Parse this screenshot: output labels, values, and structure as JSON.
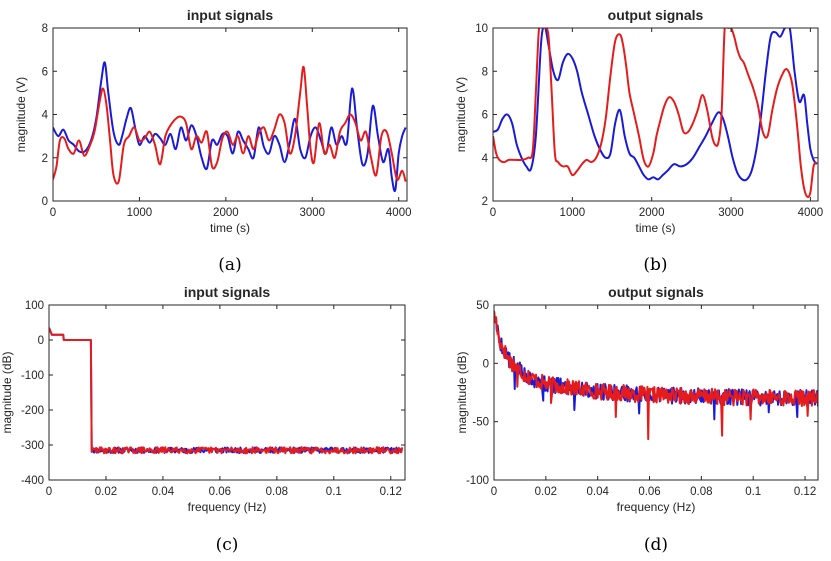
{
  "colors": {
    "series1": "#1a1adb",
    "series2": "#e61c1c"
  },
  "chart_data": [
    {
      "id": "a",
      "type": "line",
      "title": "input signals",
      "xlabel": "time (s)",
      "ylabel": "magnitude (V)",
      "caption": "(a)",
      "xlim": [
        0,
        4096
      ],
      "ylim": [
        0,
        8
      ],
      "xticks": [
        0,
        1000,
        2000,
        3000,
        4000
      ],
      "yticks": [
        0,
        2,
        4,
        6,
        8
      ],
      "grid": false,
      "series": [
        {
          "name": "blue",
          "color": "#1a1adb",
          "x": [
            0,
            60,
            120,
            180,
            240,
            300,
            370,
            440,
            500,
            560,
            600,
            640,
            700,
            760,
            800,
            850,
            900,
            950,
            1000,
            1060,
            1120,
            1180,
            1240,
            1300,
            1360,
            1420,
            1480,
            1540,
            1600,
            1660,
            1720,
            1780,
            1840,
            1900,
            1960,
            2020,
            2080,
            2140,
            2200,
            2260,
            2320,
            2380,
            2440,
            2500,
            2560,
            2620,
            2680,
            2740,
            2800,
            2860,
            2920,
            2980,
            3040,
            3100,
            3160,
            3220,
            3280,
            3340,
            3400,
            3460,
            3520,
            3580,
            3640,
            3700,
            3760,
            3820,
            3880,
            3920,
            3960,
            4000,
            4040,
            4080
          ],
          "y": [
            3.4,
            3.0,
            3.3,
            2.8,
            2.6,
            2.3,
            2.3,
            2.8,
            3.8,
            5.6,
            6.4,
            5.0,
            3.2,
            2.6,
            3.0,
            3.8,
            4.3,
            3.4,
            2.6,
            3.0,
            2.7,
            3.1,
            2.9,
            2.6,
            3.1,
            2.4,
            3.4,
            2.8,
            3.5,
            3.0,
            2.0,
            1.5,
            2.8,
            2.6,
            3.1,
            3.0,
            2.2,
            3.2,
            2.8,
            2.4,
            2.0,
            3.4,
            2.5,
            2.2,
            3.0,
            2.6,
            1.8,
            2.7,
            3.8,
            2.4,
            2.0,
            3.0,
            3.4,
            2.8,
            2.2,
            3.4,
            2.6,
            3.0,
            2.7,
            5.2,
            3.3,
            1.7,
            2.2,
            4.4,
            3.0,
            1.8,
            2.4,
            1.1,
            0.5,
            2.2,
            3.0,
            3.4
          ]
        },
        {
          "name": "red",
          "color": "#e61c1c",
          "x": [
            0,
            40,
            80,
            130,
            180,
            240,
            300,
            360,
            420,
            480,
            540,
            580,
            620,
            660,
            700,
            760,
            820,
            880,
            940,
            1000,
            1060,
            1120,
            1180,
            1240,
            1300,
            1360,
            1420,
            1480,
            1540,
            1600,
            1660,
            1720,
            1780,
            1840,
            1900,
            1960,
            2020,
            2080,
            2140,
            2200,
            2260,
            2320,
            2380,
            2440,
            2500,
            2560,
            2620,
            2680,
            2740,
            2800,
            2860,
            2900,
            2940,
            2980,
            3020,
            3080,
            3140,
            3200,
            3260,
            3320,
            3380,
            3440,
            3500,
            3560,
            3620,
            3680,
            3740,
            3800,
            3860,
            3920,
            3980,
            4040,
            4080
          ],
          "y": [
            1.0,
            1.6,
            2.8,
            2.9,
            2.4,
            2.2,
            2.8,
            2.1,
            2.5,
            3.2,
            4.6,
            5.2,
            4.4,
            2.8,
            1.2,
            0.9,
            2.6,
            3.0,
            3.4,
            2.8,
            2.9,
            3.2,
            2.6,
            1.7,
            3.0,
            3.5,
            3.8,
            3.9,
            3.6,
            2.4,
            3.0,
            2.7,
            3.2,
            1.6,
            1.8,
            2.9,
            3.2,
            2.6,
            3.0,
            2.2,
            3.0,
            2.4,
            3.1,
            3.4,
            2.8,
            3.3,
            4.0,
            3.6,
            2.2,
            3.0,
            5.0,
            6.2,
            4.4,
            2.4,
            1.8,
            3.6,
            2.2,
            2.6,
            2.0,
            3.2,
            3.6,
            4.0,
            3.6,
            2.8,
            3.2,
            2.0,
            1.2,
            3.0,
            3.2,
            2.2,
            1.0,
            1.4,
            0.9
          ]
        }
      ]
    },
    {
      "id": "b",
      "type": "line",
      "title": "output signals",
      "xlabel": "time (s)",
      "ylabel": "magnitude (V)",
      "caption": "(b)",
      "xlim": [
        0,
        4096
      ],
      "ylim": [
        2,
        10
      ],
      "xticks": [
        0,
        1000,
        2000,
        3000,
        4000
      ],
      "yticks": [
        2,
        4,
        6,
        8,
        10
      ],
      "grid": false,
      "series": [
        {
          "name": "blue",
          "color": "#1a1adb",
          "x": [
            0,
            60,
            120,
            180,
            240,
            300,
            360,
            420,
            480,
            540,
            600,
            630,
            660,
            700,
            760,
            820,
            880,
            940,
            1000,
            1060,
            1120,
            1200,
            1280,
            1360,
            1420,
            1480,
            1540,
            1600,
            1660,
            1720,
            1780,
            1840,
            1900,
            1960,
            2020,
            2080,
            2140,
            2200,
            2280,
            2360,
            2440,
            2520,
            2600,
            2680,
            2760,
            2840,
            2900,
            2960,
            3020,
            3080,
            3140,
            3200,
            3260,
            3320,
            3380,
            3440,
            3500,
            3560,
            3620,
            3680,
            3740,
            3800,
            3860,
            3920,
            3960,
            4000,
            4040,
            4080
          ],
          "y": [
            5.2,
            5.3,
            5.8,
            6.0,
            5.6,
            4.6,
            4.0,
            3.6,
            3.5,
            5.0,
            9.0,
            10.0,
            10.0,
            9.2,
            8.0,
            7.6,
            8.4,
            8.8,
            8.6,
            8.0,
            7.0,
            6.0,
            5.0,
            4.3,
            4.0,
            4.2,
            5.6,
            6.2,
            5.0,
            4.2,
            4.0,
            3.6,
            3.2,
            3.0,
            3.1,
            3.0,
            3.2,
            3.4,
            3.7,
            3.6,
            3.7,
            4.0,
            4.5,
            5.0,
            5.6,
            6.1,
            5.8,
            5.0,
            4.0,
            3.3,
            3.0,
            3.0,
            3.4,
            4.4,
            6.0,
            8.0,
            9.6,
            9.8,
            9.6,
            10.0,
            10.0,
            8.0,
            6.6,
            6.9,
            5.6,
            4.4,
            3.9,
            3.7
          ]
        },
        {
          "name": "red",
          "color": "#e61c1c",
          "x": [
            0,
            40,
            80,
            140,
            200,
            280,
            360,
            440,
            500,
            540,
            580,
            620,
            660,
            700,
            740,
            780,
            820,
            880,
            940,
            1000,
            1060,
            1120,
            1180,
            1240,
            1300,
            1360,
            1420,
            1480,
            1540,
            1600,
            1640,
            1680,
            1720,
            1780,
            1840,
            1900,
            1960,
            2020,
            2060,
            2100,
            2160,
            2220,
            2280,
            2340,
            2400,
            2460,
            2520,
            2580,
            2640,
            2700,
            2760,
            2800,
            2840,
            2880,
            2920,
            2960,
            3000,
            3040,
            3080,
            3120,
            3160,
            3220,
            3280,
            3340,
            3400,
            3460,
            3520,
            3580,
            3640,
            3700,
            3760,
            3800,
            3840,
            3880,
            3920,
            3960,
            4000,
            4040,
            4080
          ],
          "y": [
            5.0,
            4.2,
            3.9,
            3.8,
            3.9,
            3.9,
            3.9,
            4.0,
            4.3,
            7.0,
            10.0,
            10.0,
            10.0,
            9.6,
            7.0,
            4.2,
            3.8,
            3.6,
            3.6,
            3.2,
            3.4,
            3.7,
            3.9,
            3.8,
            4.0,
            4.6,
            5.8,
            7.8,
            9.4,
            9.7,
            9.2,
            8.2,
            7.0,
            6.0,
            5.0,
            3.9,
            3.6,
            4.2,
            5.0,
            5.6,
            6.4,
            6.8,
            6.6,
            6.0,
            5.2,
            5.2,
            5.6,
            6.2,
            6.9,
            6.2,
            5.0,
            4.6,
            4.7,
            6.0,
            10.0,
            10.0,
            10.0,
            9.6,
            9.0,
            8.6,
            8.4,
            7.8,
            7.2,
            6.4,
            5.2,
            5.0,
            6.2,
            7.2,
            7.8,
            8.1,
            7.6,
            6.6,
            5.2,
            3.6,
            2.6,
            2.2,
            2.4,
            3.6,
            3.8
          ]
        }
      ]
    },
    {
      "id": "c",
      "type": "line",
      "title": "input signals",
      "xlabel": "frequency (Hz)",
      "ylabel": "magnitude (dB)",
      "caption": "(c)",
      "xlim": [
        0,
        0.125
      ],
      "ylim": [
        -400,
        100
      ],
      "xticks": [
        0,
        0.02,
        0.04,
        0.06,
        0.08,
        0.1,
        0.12
      ],
      "yticks": [
        -400,
        -300,
        -200,
        -100,
        0,
        100
      ],
      "grid": false,
      "series": [
        {
          "name": "blue",
          "color": "#1a1adb",
          "kind": "noisy",
          "shape": [
            [
              0,
              35
            ],
            [
              0.001,
              15
            ],
            [
              0.005,
              15
            ],
            [
              0.0052,
              0
            ],
            [
              0.0147,
              0
            ],
            [
              0.015,
              -315
            ],
            [
              0.124,
              -315
            ]
          ],
          "noise_start": 0.015,
          "noise_amp": 8,
          "points": 380,
          "seed": 11
        },
        {
          "name": "red",
          "color": "#e61c1c",
          "kind": "noisy",
          "shape": [
            [
              0,
              35
            ],
            [
              0.001,
              15
            ],
            [
              0.005,
              15
            ],
            [
              0.0052,
              0
            ],
            [
              0.0147,
              0
            ],
            [
              0.015,
              -315
            ],
            [
              0.124,
              -315
            ]
          ],
          "noise_start": 0.015,
          "noise_amp": 9,
          "points": 380,
          "seed": 29
        }
      ]
    },
    {
      "id": "d",
      "type": "line",
      "title": "output signals",
      "xlabel": "frequency (Hz)",
      "ylabel": "magnitude (dB)",
      "caption": "(d)",
      "xlim": [
        0,
        0.125
      ],
      "ylim": [
        -100,
        50
      ],
      "xticks": [
        0,
        0.02,
        0.04,
        0.06,
        0.08,
        0.1,
        0.12
      ],
      "yticks": [
        -100,
        -50,
        0,
        50
      ],
      "grid": false,
      "series": [
        {
          "name": "blue",
          "color": "#1a1adb",
          "kind": "noisy",
          "shape": [
            [
              0,
              45
            ],
            [
              0.002,
              20
            ],
            [
              0.006,
              2
            ],
            [
              0.012,
              -10
            ],
            [
              0.02,
              -18
            ],
            [
              0.04,
              -24
            ],
            [
              0.06,
              -27
            ],
            [
              0.09,
              -29
            ],
            [
              0.125,
              -30
            ]
          ],
          "noise_start": 0.0005,
          "noise_amp": 7,
          "points": 420,
          "seed": 5,
          "dips": [
            [
              0.008,
              -22
            ],
            [
              0.019,
              -32
            ],
            [
              0.031,
              -40
            ],
            [
              0.056,
              -43
            ],
            [
              0.085,
              -48
            ],
            [
              0.106,
              -42
            ],
            [
              0.117,
              -46
            ]
          ]
        },
        {
          "name": "red",
          "color": "#e61c1c",
          "kind": "noisy",
          "shape": [
            [
              0,
              45
            ],
            [
              0.002,
              20
            ],
            [
              0.006,
              2
            ],
            [
              0.012,
              -10
            ],
            [
              0.02,
              -18
            ],
            [
              0.04,
              -24
            ],
            [
              0.06,
              -27
            ],
            [
              0.09,
              -29
            ],
            [
              0.125,
              -30
            ]
          ],
          "noise_start": 0.0005,
          "noise_amp": 7,
          "points": 420,
          "seed": 17,
          "dips": [
            [
              0.009,
              -20
            ],
            [
              0.022,
              -34
            ],
            [
              0.047,
              -46
            ],
            [
              0.0595,
              -65
            ],
            [
              0.088,
              -62
            ],
            [
              0.099,
              -48
            ],
            [
              0.121,
              -45
            ]
          ]
        }
      ]
    }
  ]
}
